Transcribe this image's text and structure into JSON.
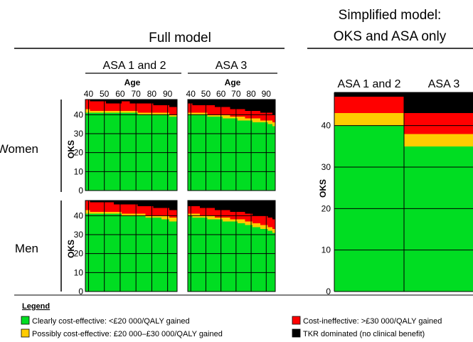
{
  "colors": {
    "cost_effective": "#00dd22",
    "possibly": "#ffcc00",
    "ineffective": "#ff0000",
    "dominated": "#000000"
  },
  "full_model": {
    "title": "Full model",
    "col_headers": [
      "ASA 1 and 2",
      "ASA 3"
    ],
    "age_label": "Age",
    "age_ticks": [
      "40",
      "50",
      "60",
      "70",
      "80",
      "90"
    ],
    "row_labels": [
      "Women",
      "Men"
    ],
    "y_label": "OKS",
    "y_ticks": [
      "0",
      "10",
      "20",
      "30",
      "40"
    ]
  },
  "simplified_model": {
    "title_line1": "Simplified model:",
    "title_line2": "OKS and ASA only",
    "col_headers": [
      "ASA 1 and 2",
      "ASA 3"
    ],
    "y_label": "OKS",
    "y_ticks": [
      "0",
      "10",
      "20",
      "30",
      "40"
    ]
  },
  "legend": {
    "title": "Legend",
    "items": [
      {
        "key": "cost_effective",
        "label": "Clearly cost-effective: <£20 000/QALY gained"
      },
      {
        "key": "possibly",
        "label": "Possibly cost-effective: £20 000–£30 000/QALY gained"
      },
      {
        "key": "ineffective",
        "label": "Cost-ineffective: >£30 000/QALY gained"
      },
      {
        "key": "dominated",
        "label": "TKR dominated (no clinical benefit)"
      }
    ]
  },
  "chart_data": [
    {
      "type": "heatmap",
      "sex": "Women",
      "asa": "ASA 1 and 2",
      "x_label": "Age",
      "y_label": "OKS",
      "xlim": [
        38,
        96
      ],
      "ylim": [
        0,
        48
      ],
      "columns": [
        {
          "age_from": 38,
          "age_to": 41,
          "green_to": 41,
          "yellow_to": 43,
          "red_to": 48
        },
        {
          "age_from": 41,
          "age_to": 46,
          "green_to": 41,
          "yellow_to": 42,
          "red_to": 47
        },
        {
          "age_from": 46,
          "age_to": 51,
          "green_to": 41,
          "yellow_to": 42,
          "red_to": 47
        },
        {
          "age_from": 51,
          "age_to": 56,
          "green_to": 41,
          "yellow_to": 42,
          "red_to": 46
        },
        {
          "age_from": 56,
          "age_to": 61,
          "green_to": 41,
          "yellow_to": 42,
          "red_to": 46
        },
        {
          "age_from": 61,
          "age_to": 66,
          "green_to": 41,
          "yellow_to": 42,
          "red_to": 47
        },
        {
          "age_from": 66,
          "age_to": 71,
          "green_to": 41,
          "yellow_to": 42,
          "red_to": 46
        },
        {
          "age_from": 71,
          "age_to": 76,
          "green_to": 40,
          "yellow_to": 41,
          "red_to": 46
        },
        {
          "age_from": 76,
          "age_to": 81,
          "green_to": 40,
          "yellow_to": 41,
          "red_to": 46
        },
        {
          "age_from": 81,
          "age_to": 86,
          "green_to": 40,
          "yellow_to": 41,
          "red_to": 45
        },
        {
          "age_from": 86,
          "age_to": 91,
          "green_to": 40,
          "yellow_to": 41,
          "red_to": 45
        },
        {
          "age_from": 91,
          "age_to": 94,
          "green_to": 39,
          "yellow_to": 40,
          "red_to": 44
        },
        {
          "age_from": 94,
          "age_to": 96,
          "green_to": 39,
          "yellow_to": 40,
          "red_to": 44
        }
      ]
    },
    {
      "type": "heatmap",
      "sex": "Women",
      "asa": "ASA 3",
      "x_label": "Age",
      "y_label": "OKS",
      "xlim": [
        38,
        96
      ],
      "ylim": [
        0,
        48
      ],
      "columns": [
        {
          "age_from": 38,
          "age_to": 41,
          "green_to": 40,
          "yellow_to": 41,
          "red_to": 46
        },
        {
          "age_from": 41,
          "age_to": 46,
          "green_to": 40,
          "yellow_to": 41,
          "red_to": 45
        },
        {
          "age_from": 46,
          "age_to": 51,
          "green_to": 40,
          "yellow_to": 41,
          "red_to": 45
        },
        {
          "age_from": 51,
          "age_to": 56,
          "green_to": 39,
          "yellow_to": 40,
          "red_to": 45
        },
        {
          "age_from": 56,
          "age_to": 61,
          "green_to": 39,
          "yellow_to": 40,
          "red_to": 44
        },
        {
          "age_from": 61,
          "age_to": 66,
          "green_to": 38,
          "yellow_to": 40,
          "red_to": 44
        },
        {
          "age_from": 66,
          "age_to": 71,
          "green_to": 38,
          "yellow_to": 39,
          "red_to": 43
        },
        {
          "age_from": 71,
          "age_to": 76,
          "green_to": 37,
          "yellow_to": 39,
          "red_to": 43
        },
        {
          "age_from": 76,
          "age_to": 81,
          "green_to": 37,
          "yellow_to": 38,
          "red_to": 42
        },
        {
          "age_from": 81,
          "age_to": 86,
          "green_to": 36,
          "yellow_to": 38,
          "red_to": 42
        },
        {
          "age_from": 86,
          "age_to": 91,
          "green_to": 36,
          "yellow_to": 37,
          "red_to": 41
        },
        {
          "age_from": 91,
          "age_to": 94,
          "green_to": 35,
          "yellow_to": 37,
          "red_to": 41
        },
        {
          "age_from": 94,
          "age_to": 96,
          "green_to": 34,
          "yellow_to": 36,
          "red_to": 40
        }
      ]
    },
    {
      "type": "heatmap",
      "sex": "Men",
      "asa": "ASA 1 and 2",
      "x_label": "Age",
      "y_label": "OKS",
      "xlim": [
        38,
        96
      ],
      "ylim": [
        0,
        48
      ],
      "columns": [
        {
          "age_from": 38,
          "age_to": 41,
          "green_to": 41,
          "yellow_to": 43,
          "red_to": 48
        },
        {
          "age_from": 41,
          "age_to": 46,
          "green_to": 41,
          "yellow_to": 42,
          "red_to": 47
        },
        {
          "age_from": 46,
          "age_to": 51,
          "green_to": 41,
          "yellow_to": 42,
          "red_to": 47
        },
        {
          "age_from": 51,
          "age_to": 56,
          "green_to": 41,
          "yellow_to": 42,
          "red_to": 47
        },
        {
          "age_from": 56,
          "age_to": 61,
          "green_to": 41,
          "yellow_to": 42,
          "red_to": 46
        },
        {
          "age_from": 61,
          "age_to": 66,
          "green_to": 40,
          "yellow_to": 41,
          "red_to": 46
        },
        {
          "age_from": 66,
          "age_to": 71,
          "green_to": 40,
          "yellow_to": 41,
          "red_to": 46
        },
        {
          "age_from": 71,
          "age_to": 76,
          "green_to": 40,
          "yellow_to": 41,
          "red_to": 45
        },
        {
          "age_from": 76,
          "age_to": 81,
          "green_to": 39,
          "yellow_to": 40,
          "red_to": 45
        },
        {
          "age_from": 81,
          "age_to": 86,
          "green_to": 39,
          "yellow_to": 40,
          "red_to": 44
        },
        {
          "age_from": 86,
          "age_to": 91,
          "green_to": 38,
          "yellow_to": 40,
          "red_to": 44
        },
        {
          "age_from": 91,
          "age_to": 94,
          "green_to": 37,
          "yellow_to": 39,
          "red_to": 43
        },
        {
          "age_from": 94,
          "age_to": 96,
          "green_to": 37,
          "yellow_to": 39,
          "red_to": 43
        }
      ]
    },
    {
      "type": "heatmap",
      "sex": "Men",
      "asa": "ASA 3",
      "x_label": "Age",
      "y_label": "OKS",
      "xlim": [
        38,
        96
      ],
      "ylim": [
        0,
        48
      ],
      "columns": [
        {
          "age_from": 38,
          "age_to": 41,
          "green_to": 40,
          "yellow_to": 41,
          "red_to": 45
        },
        {
          "age_from": 41,
          "age_to": 46,
          "green_to": 39,
          "yellow_to": 41,
          "red_to": 45
        },
        {
          "age_from": 46,
          "age_to": 51,
          "green_to": 39,
          "yellow_to": 40,
          "red_to": 44
        },
        {
          "age_from": 51,
          "age_to": 56,
          "green_to": 38,
          "yellow_to": 40,
          "red_to": 44
        },
        {
          "age_from": 56,
          "age_to": 61,
          "green_to": 38,
          "yellow_to": 39,
          "red_to": 43
        },
        {
          "age_from": 61,
          "age_to": 66,
          "green_to": 37,
          "yellow_to": 39,
          "red_to": 43
        },
        {
          "age_from": 66,
          "age_to": 71,
          "green_to": 37,
          "yellow_to": 38,
          "red_to": 42
        },
        {
          "age_from": 71,
          "age_to": 76,
          "green_to": 36,
          "yellow_to": 38,
          "red_to": 42
        },
        {
          "age_from": 76,
          "age_to": 81,
          "green_to": 35,
          "yellow_to": 37,
          "red_to": 41
        },
        {
          "age_from": 81,
          "age_to": 86,
          "green_to": 34,
          "yellow_to": 36,
          "red_to": 40
        },
        {
          "age_from": 86,
          "age_to": 91,
          "green_to": 33,
          "yellow_to": 35,
          "red_to": 40
        },
        {
          "age_from": 91,
          "age_to": 94,
          "green_to": 32,
          "yellow_to": 34,
          "red_to": 39
        },
        {
          "age_from": 94,
          "age_to": 96,
          "green_to": 31,
          "yellow_to": 33,
          "red_to": 38
        }
      ]
    },
    {
      "type": "heatmap",
      "model": "Simplified model",
      "y_label": "OKS",
      "ylim": [
        0,
        48
      ],
      "categories": [
        "ASA 1 and 2",
        "ASA 3"
      ],
      "columns": [
        {
          "category": "ASA 1 and 2",
          "green_to": 40,
          "yellow_to": 43,
          "red_to": 47
        },
        {
          "category": "ASA 3",
          "green_to": 35,
          "yellow_to": 38,
          "red_to": 43
        }
      ]
    }
  ]
}
